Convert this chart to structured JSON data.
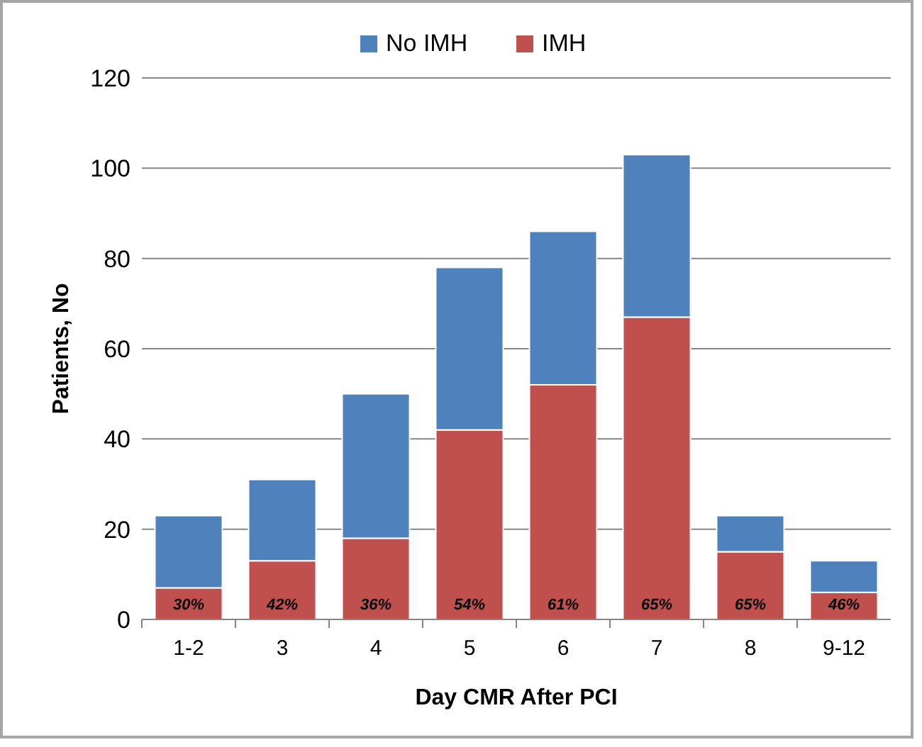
{
  "chart_data": {
    "type": "bar",
    "stacked": true,
    "xlabel": "Day CMR After PCI",
    "ylabel": "Patients, No",
    "categories": [
      "1-2",
      "3",
      "4",
      "5",
      "6",
      "7",
      "8",
      "9-12"
    ],
    "series": [
      {
        "name": "IMH",
        "color": "#c0504d",
        "values": [
          7,
          13,
          18,
          42,
          52,
          67,
          15,
          6
        ]
      },
      {
        "name": "No IMH",
        "color": "#4f81bd",
        "values": [
          16,
          18,
          32,
          36,
          34,
          36,
          8,
          7
        ]
      }
    ],
    "annotations": [
      "30%",
      "42%",
      "36%",
      "54%",
      "61%",
      "65%",
      "65%",
      "46%"
    ],
    "ylim": [
      0,
      120
    ],
    "yticks": [
      0,
      20,
      40,
      60,
      80,
      100,
      120
    ],
    "grid": "y",
    "legend": "top"
  }
}
